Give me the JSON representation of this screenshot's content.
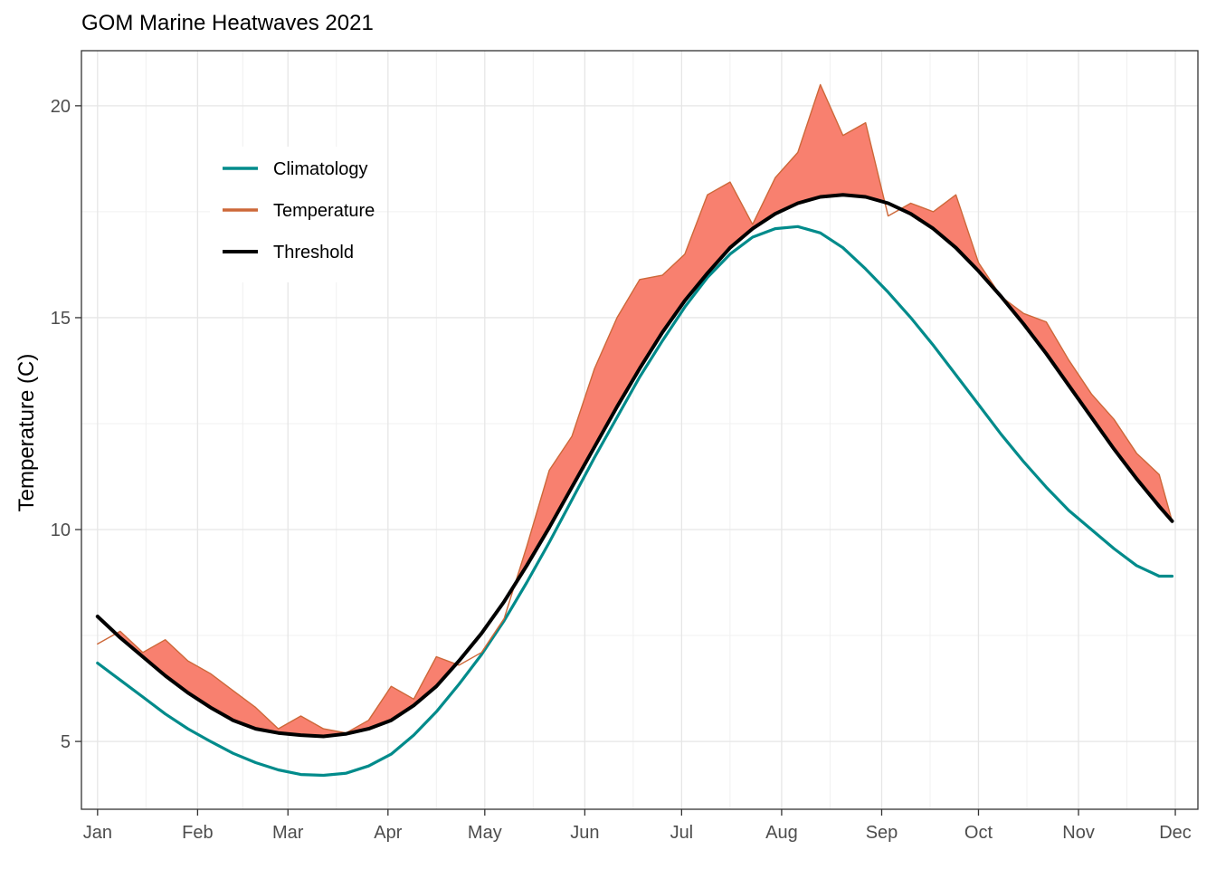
{
  "chart_data": {
    "type": "line",
    "title": "GOM Marine Heatwaves 2021",
    "xlabel": "",
    "ylabel": "Temperature (C)",
    "x_tick_labels": [
      "Jan",
      "Feb",
      "Mar",
      "Apr",
      "May",
      "Jun",
      "Jul",
      "Aug",
      "Sep",
      "Oct",
      "Nov",
      "Dec"
    ],
    "y_ticks": [
      5,
      10,
      15,
      20
    ],
    "ylim": [
      3.4,
      21.3
    ],
    "xlim": [
      "2020-12-27",
      "2021-12-08"
    ],
    "grid": true,
    "legend_position": "top-left",
    "heatwave_fill_color": "#F8806F",
    "x": [
      "2021-01-01",
      "2021-01-08",
      "2021-01-15",
      "2021-01-22",
      "2021-01-29",
      "2021-02-05",
      "2021-02-12",
      "2021-02-19",
      "2021-02-26",
      "2021-03-05",
      "2021-03-12",
      "2021-03-19",
      "2021-03-26",
      "2021-04-02",
      "2021-04-09",
      "2021-04-16",
      "2021-04-23",
      "2021-04-30",
      "2021-05-07",
      "2021-05-14",
      "2021-05-21",
      "2021-05-28",
      "2021-06-04",
      "2021-06-11",
      "2021-06-18",
      "2021-06-25",
      "2021-07-02",
      "2021-07-09",
      "2021-07-16",
      "2021-07-23",
      "2021-07-30",
      "2021-08-06",
      "2021-08-13",
      "2021-08-20",
      "2021-08-27",
      "2021-09-03",
      "2021-09-10",
      "2021-09-17",
      "2021-09-24",
      "2021-10-01",
      "2021-10-08",
      "2021-10-15",
      "2021-10-22",
      "2021-10-29",
      "2021-11-05",
      "2021-11-12",
      "2021-11-19",
      "2021-11-26",
      "2021-11-30"
    ],
    "series": [
      {
        "name": "Climatology",
        "color": "#008B8B",
        "values": [
          6.85,
          6.45,
          6.05,
          5.65,
          5.3,
          5.0,
          4.72,
          4.5,
          4.33,
          4.22,
          4.2,
          4.25,
          4.42,
          4.7,
          5.15,
          5.7,
          6.35,
          7.05,
          7.85,
          8.75,
          9.7,
          10.7,
          11.7,
          12.65,
          13.6,
          14.45,
          15.25,
          15.95,
          16.5,
          16.9,
          17.1,
          17.15,
          17.0,
          16.65,
          16.15,
          15.6,
          15.0,
          14.35,
          13.65,
          12.95,
          12.25,
          11.6,
          11.0,
          10.45,
          10.0,
          9.55,
          9.15,
          8.9,
          8.9
        ]
      },
      {
        "name": "Temperature",
        "color": "#CD6839",
        "values": [
          7.3,
          7.6,
          7.1,
          7.4,
          6.9,
          6.6,
          6.2,
          5.8,
          5.3,
          5.6,
          5.3,
          5.2,
          5.5,
          6.3,
          6.0,
          7.0,
          6.8,
          7.1,
          7.9,
          9.6,
          11.4,
          12.2,
          13.8,
          15.0,
          15.9,
          16.0,
          16.5,
          17.9,
          18.2,
          17.2,
          18.3,
          18.9,
          20.5,
          19.3,
          19.6,
          17.4,
          17.7,
          17.5,
          17.9,
          16.3,
          15.5,
          15.1,
          14.9,
          14.0,
          13.2,
          12.6,
          11.8,
          11.3,
          10.2
        ]
      },
      {
        "name": "Threshold",
        "color": "#000000",
        "values": [
          7.95,
          7.45,
          7.0,
          6.55,
          6.15,
          5.8,
          5.5,
          5.3,
          5.2,
          5.15,
          5.12,
          5.18,
          5.3,
          5.5,
          5.85,
          6.3,
          6.9,
          7.55,
          8.3,
          9.15,
          10.05,
          11.0,
          11.95,
          12.9,
          13.8,
          14.65,
          15.4,
          16.05,
          16.65,
          17.1,
          17.45,
          17.7,
          17.85,
          17.9,
          17.85,
          17.7,
          17.45,
          17.1,
          16.65,
          16.1,
          15.5,
          14.85,
          14.15,
          13.4,
          12.65,
          11.9,
          11.2,
          10.55,
          10.2
        ]
      }
    ]
  }
}
